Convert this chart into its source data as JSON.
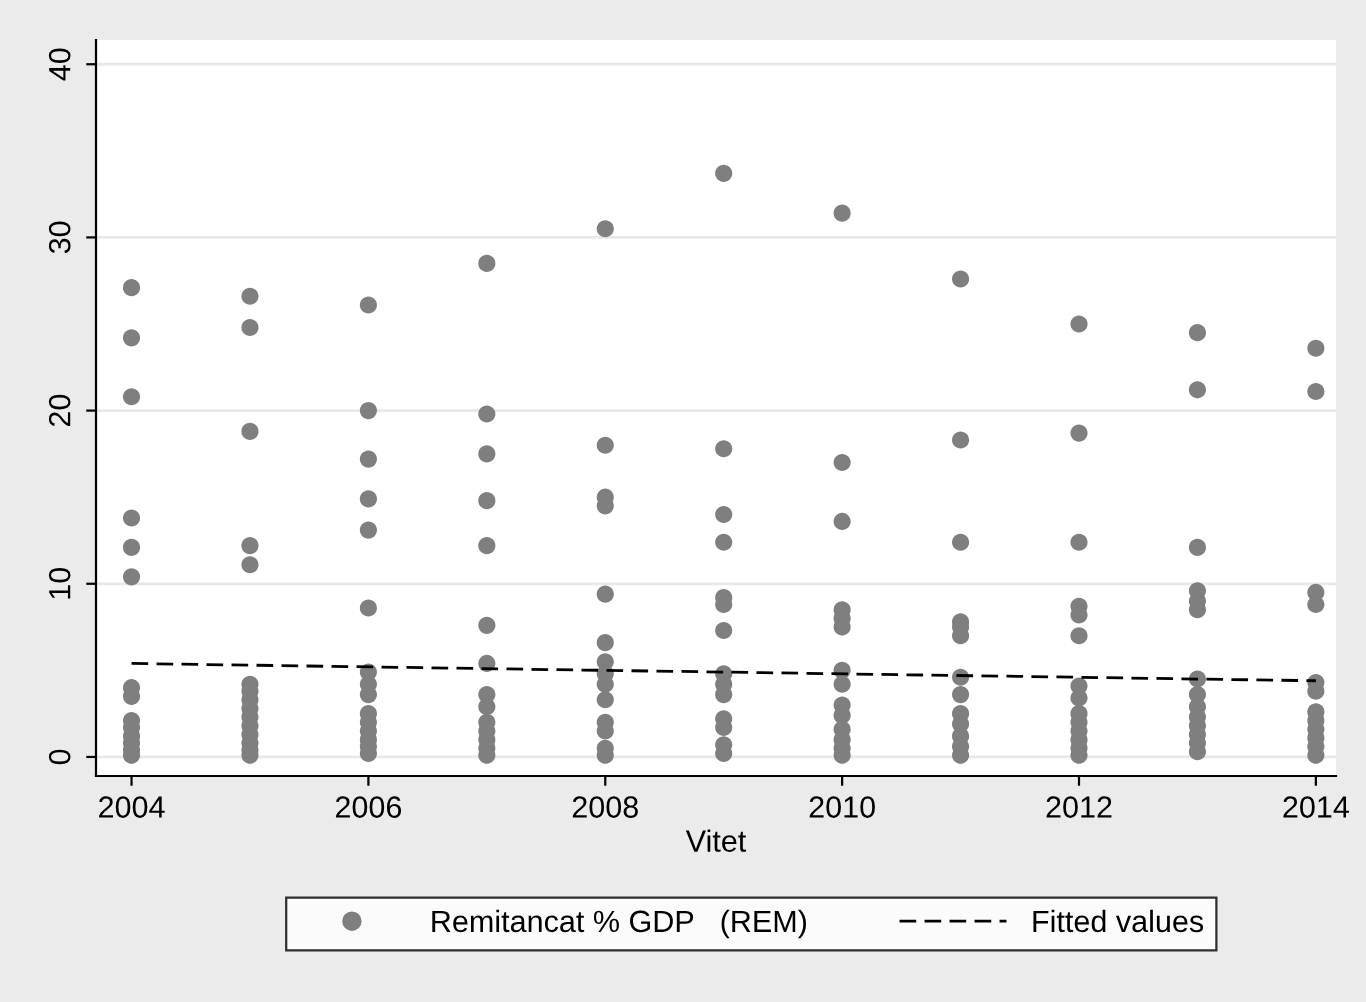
{
  "chart_data": {
    "type": "scatter",
    "xlabel": "Vitet",
    "xlim": [
      2003.7,
      2014.17
    ],
    "xticks": [
      2004,
      2006,
      2008,
      2010,
      2012,
      2014
    ],
    "ylim": [
      -1.1,
      41.4
    ],
    "yticks": [
      0,
      10,
      20,
      30,
      40
    ],
    "grid": "y",
    "legend": "bottom",
    "series": [
      {
        "name": "Remitancat % GDP   (REM)",
        "marker": "circle",
        "color": "#7f7f7f",
        "x": [
          2004,
          2004,
          2004,
          2004,
          2004,
          2004,
          2004,
          2004,
          2004,
          2004,
          2004,
          2004,
          2004,
          2004,
          2005,
          2005,
          2005,
          2005,
          2005,
          2005,
          2005,
          2005,
          2005,
          2005,
          2005,
          2005,
          2005,
          2005,
          2005,
          2006,
          2006,
          2006,
          2006,
          2006,
          2006,
          2006,
          2006,
          2006,
          2006,
          2006,
          2006,
          2006,
          2006,
          2006,
          2007,
          2007,
          2007,
          2007,
          2007,
          2007,
          2007,
          2007,
          2007,
          2007,
          2007,
          2007,
          2007,
          2007,
          2008,
          2008,
          2008,
          2008,
          2008,
          2008,
          2008,
          2008,
          2008,
          2008,
          2008,
          2008,
          2008,
          2008,
          2009,
          2009,
          2009,
          2009,
          2009,
          2009,
          2009,
          2009,
          2009,
          2009,
          2009,
          2009,
          2009,
          2009,
          2010,
          2010,
          2010,
          2010,
          2010,
          2010,
          2010,
          2010,
          2010,
          2010,
          2010,
          2010,
          2010,
          2010,
          2011,
          2011,
          2011,
          2011,
          2011,
          2011,
          2011,
          2011,
          2011,
          2011,
          2011,
          2011,
          2011,
          2012,
          2012,
          2012,
          2012,
          2012,
          2012,
          2012,
          2012,
          2012,
          2012,
          2012,
          2012,
          2012,
          2012,
          2013,
          2013,
          2013,
          2013,
          2013,
          2013,
          2013,
          2013,
          2013,
          2013,
          2013,
          2013,
          2013,
          2013,
          2014,
          2014,
          2014,
          2014,
          2014,
          2014,
          2014,
          2014,
          2014,
          2014,
          2014,
          2014
        ],
        "values": [
          27.1,
          24.2,
          20.8,
          13.8,
          12.1,
          10.4,
          4.0,
          3.5,
          2.1,
          1.7,
          1.2,
          0.8,
          0.4,
          0.1,
          26.6,
          24.8,
          18.8,
          12.2,
          11.1,
          4.2,
          3.8,
          3.3,
          2.8,
          2.3,
          1.8,
          1.3,
          0.8,
          0.4,
          0.1,
          26.1,
          20.0,
          17.2,
          14.9,
          13.1,
          8.6,
          4.9,
          4.2,
          3.6,
          2.5,
          2.0,
          1.5,
          1.0,
          0.6,
          0.2,
          28.5,
          19.8,
          17.5,
          14.8,
          12.2,
          7.6,
          5.4,
          3.6,
          2.9,
          2.0,
          1.5,
          1.0,
          0.5,
          0.1,
          30.5,
          18.0,
          15.0,
          14.5,
          9.4,
          6.6,
          5.5,
          4.8,
          4.2,
          3.3,
          2.0,
          1.5,
          0.5,
          0.1,
          33.7,
          17.8,
          14.0,
          12.4,
          9.2,
          8.8,
          7.3,
          4.8,
          4.2,
          3.6,
          2.2,
          1.7,
          0.7,
          0.2,
          31.4,
          17.0,
          13.6,
          8.5,
          8.0,
          7.5,
          5.0,
          4.2,
          3.0,
          2.4,
          1.6,
          1.0,
          0.5,
          0.1,
          27.6,
          18.3,
          12.4,
          7.8,
          7.5,
          7.0,
          4.6,
          3.6,
          2.5,
          1.9,
          1.2,
          0.6,
          0.1,
          25.0,
          18.7,
          12.4,
          8.7,
          8.2,
          7.0,
          4.1,
          3.4,
          2.5,
          2.0,
          1.5,
          1.0,
          0.5,
          0.1,
          24.5,
          21.2,
          12.1,
          9.6,
          9.0,
          8.5,
          4.5,
          3.6,
          2.9,
          2.3,
          1.8,
          1.3,
          0.8,
          0.3,
          23.6,
          21.1,
          9.5,
          8.8,
          4.3,
          3.8,
          2.6,
          2.1,
          1.6,
          1.1,
          0.6,
          0.1
        ]
      },
      {
        "name": "Fitted values",
        "type": "line",
        "line_style": "dashed",
        "marker": "none",
        "color": "#000000",
        "x": [
          2004,
          2014
        ],
        "values": [
          5.4,
          4.4
        ]
      }
    ]
  }
}
